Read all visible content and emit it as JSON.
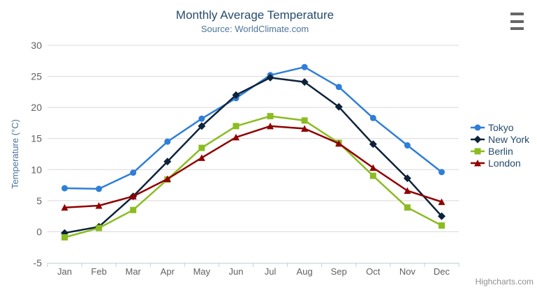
{
  "chart_data": {
    "type": "line",
    "title": "Monthly Average Temperature",
    "subtitle": "Source: WorldClimate.com",
    "xlabel": "",
    "ylabel": "Temperature (°C)",
    "categories": [
      "Jan",
      "Feb",
      "Mar",
      "Apr",
      "May",
      "Jun",
      "Jul",
      "Aug",
      "Sep",
      "Oct",
      "Nov",
      "Dec"
    ],
    "yticks": [
      30,
      25,
      20,
      15,
      10,
      5,
      0,
      -5
    ],
    "ylim": [
      -5,
      30
    ],
    "grid": "horizontal-only",
    "legend_position": "right",
    "series": [
      {
        "name": "Tokyo",
        "color": "#2f7ed8",
        "marker": "circle",
        "values": [
          7.0,
          6.9,
          9.5,
          14.5,
          18.2,
          21.5,
          25.2,
          26.5,
          23.3,
          18.3,
          13.9,
          9.6
        ]
      },
      {
        "name": "New York",
        "color": "#0d233a",
        "marker": "diamond",
        "values": [
          -0.2,
          0.8,
          5.7,
          11.3,
          17.0,
          22.0,
          24.8,
          24.1,
          20.1,
          14.1,
          8.6,
          2.5
        ]
      },
      {
        "name": "Berlin",
        "color": "#8bbc21",
        "marker": "square",
        "values": [
          -0.9,
          0.6,
          3.5,
          8.4,
          13.5,
          17.0,
          18.6,
          17.9,
          14.3,
          9.0,
          3.9,
          1.0
        ]
      },
      {
        "name": "London",
        "color": "#910000",
        "marker": "triangle",
        "values": [
          3.9,
          4.2,
          5.7,
          8.5,
          11.9,
          15.2,
          17.0,
          16.6,
          14.2,
          10.3,
          6.6,
          4.8
        ]
      }
    ],
    "credit": "Highcharts.com"
  },
  "colors": {
    "title": "#274b6d",
    "subtitle": "#4d759e",
    "axis_labels": "#606060",
    "grid_line": "#d8d8d8",
    "axis_line": "#c0d0e0",
    "legend_text": "#274b6d",
    "credit": "#909090",
    "menu_icon": "#666666",
    "background": "#ffffff"
  }
}
